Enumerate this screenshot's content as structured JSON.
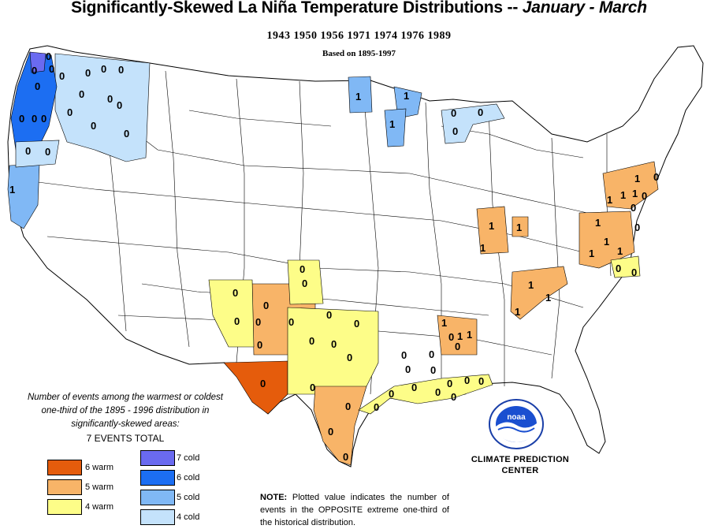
{
  "header": {
    "title_main": "Significantly-Skewed La Niña Temperature Distributions  --",
    "title_period": "January - March",
    "years": "1943 1950 1956 1971 1974 1976 1989",
    "basis": "Based on 1895-1997"
  },
  "legend": {
    "note": "Number of events among the warmest or coldest one-third of the 1895 - 1996 distribution in significantly-skewed areas:",
    "total": "7 EVENTS TOTAL",
    "items": [
      {
        "label": "6 warm",
        "color": "#e55c0c"
      },
      {
        "label": "5 warm",
        "color": "#f8b468"
      },
      {
        "label": "4 warm",
        "color": "#fdfd88"
      },
      {
        "label": "7 cold",
        "color": "#6a6af0"
      },
      {
        "label": "6 cold",
        "color": "#1c6ef2"
      },
      {
        "label": "5 cold",
        "color": "#80b8f5"
      },
      {
        "label": "4 cold",
        "color": "#c4e2fb"
      }
    ]
  },
  "logo": {
    "agency_text": "noaa",
    "caption_line1": "CLIMATE PREDICTION",
    "caption_line2": "CENTER"
  },
  "note": {
    "prefix": "NOTE:",
    "text": "Plotted value indicates the number of events in the OPPOSITE extreme one-third of the historical distribution."
  },
  "map_values": {
    "zero": "0",
    "one": "1"
  }
}
